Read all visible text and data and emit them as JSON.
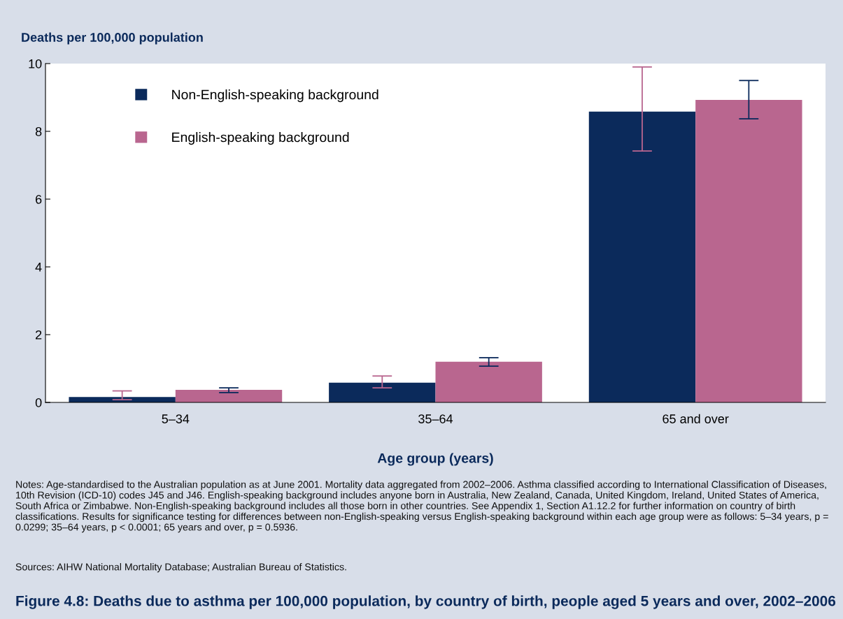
{
  "chart_data": {
    "type": "bar",
    "title": "Figure 4.8: Deaths due to asthma per 100,000 population, by country of birth, people aged 5 years and over, 2002–2006",
    "ylabel": "Deaths per 100,000 population",
    "xlabel": "Age group (years)",
    "categories": [
      "5–34",
      "35–64",
      "65 and over"
    ],
    "series": [
      {
        "name": "Non-English-speaking background",
        "color": "#0b2a5b",
        "values": [
          0.16,
          0.58,
          8.58
        ],
        "errors": [
          [
            0.08,
            0.34
          ],
          [
            0.43,
            0.78
          ],
          [
            7.42,
            9.9
          ]
        ]
      },
      {
        "name": "English-speaking background",
        "color": "#b9668f",
        "values": [
          0.37,
          1.2,
          8.93
        ],
        "errors": [
          [
            0.29,
            0.43
          ],
          [
            1.07,
            1.32
          ],
          [
            8.37,
            9.5
          ]
        ]
      }
    ],
    "ylim": [
      0,
      10
    ],
    "yticks": [
      0,
      2,
      4,
      6,
      8,
      10
    ],
    "grid": false,
    "legend": "top left",
    "annotations": [
      "Notes: Age-standardised to the Australian population as at June 2001. Mortality data aggregated from 2002–2006. Asthma classified according to International Classification of Diseases, 10th Revision (ICD-10) codes J45 and J46. English-speaking background includes anyone born in Australia, New Zealand, Canada, United Kingdom, Ireland, United States of America, South Africa or Zimbabwe. Non-English-speaking background includes all those born in other countries. See Appendix 1, Section A1.12.2 for further information on country of birth classifications. Results for significance testing for differences between non-English-speaking versus English-speaking background within each age group were as follows: 5–34 years, p = 0.0299; 35–64 years, p < 0.0001; 65 years and over, p = 0.5936.",
      "Sources: AIHW National Mortality Database; Australian Bureau of Statistics."
    ]
  }
}
